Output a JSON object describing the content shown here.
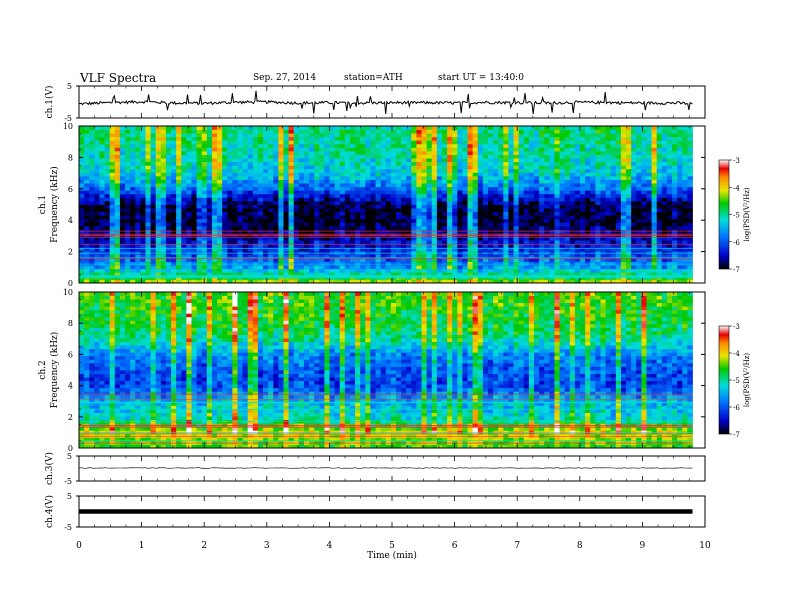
{
  "header": {
    "title": "VLF Spectra",
    "date": "Sep. 27, 2014",
    "station": "station=ATH",
    "start": "start UT =  13:40:0"
  },
  "chart_data": [
    {
      "type": "line",
      "name": "ch1-waveform",
      "ylabel": "ch.1(V)",
      "ylim": [
        -5,
        5
      ],
      "yticks": [
        5,
        -5
      ],
      "xlim": [
        0,
        10
      ],
      "x": [
        0,
        0.5,
        1,
        1.5,
        2,
        2.5,
        3,
        3.5,
        4,
        4.5,
        5,
        5.5,
        6,
        6.5,
        7,
        7.5,
        8,
        8.5,
        9,
        9.5,
        9.8
      ],
      "y": [
        -0.6,
        -0.2,
        0.1,
        -0.3,
        -0.4,
        -0.1,
        0.0,
        -0.3,
        -0.2,
        -0.3,
        -0.2,
        -0.2,
        -0.3,
        -0.1,
        -0.2,
        -0.3,
        -0.1,
        -0.2,
        -0.3,
        -0.3,
        -0.5
      ]
    },
    {
      "type": "heatmap",
      "name": "ch1-spectrogram",
      "ylabel": "ch.1 Frequency (kHz)",
      "ylim": [
        0,
        10
      ],
      "yticks": [
        0,
        2,
        4,
        6,
        8,
        10
      ],
      "xlim": [
        0,
        10
      ],
      "data_xmax": 9.8,
      "colorbar": {
        "label": "log(PSD(V²/Hz)",
        "range": [
          -7,
          -3
        ],
        "ticks": [
          -3,
          -4,
          -5,
          -6,
          -7
        ]
      },
      "mean_log_psd_by_freq": {
        "freq_khz": [
          0,
          1,
          2,
          3,
          4,
          5,
          6,
          7,
          8,
          9,
          10
        ],
        "value": [
          -4.2,
          -5.6,
          -6.2,
          -6.6,
          -6.9,
          -6.8,
          -5.9,
          -5.3,
          -5.1,
          -5.0,
          -4.9
        ]
      }
    },
    {
      "type": "heatmap",
      "name": "ch2-spectrogram",
      "ylabel": "ch.2 Frequency (kHz)",
      "ylim": [
        0,
        10
      ],
      "yticks": [
        0,
        2,
        4,
        6,
        8,
        10
      ],
      "xlim": [
        0,
        10
      ],
      "data_xmax": 9.8,
      "colorbar": {
        "label": "log(PSD(V²/Hz)",
        "range": [
          -7,
          -3
        ],
        "ticks": [
          -3,
          -4,
          -5,
          -6,
          -7
        ]
      },
      "mean_log_psd_by_freq": {
        "freq_khz": [
          0,
          1,
          2,
          3,
          4,
          5,
          6,
          7,
          8,
          9,
          10
        ],
        "value": [
          -4.6,
          -4.1,
          -5.2,
          -5.4,
          -6.1,
          -6.0,
          -5.7,
          -5.0,
          -4.7,
          -4.6,
          -4.5
        ]
      }
    },
    {
      "type": "line",
      "name": "ch3-waveform",
      "ylabel": "ch.3(V)",
      "ylim": [
        -5,
        5
      ],
      "yticks": [
        5,
        -5
      ],
      "xlim": [
        0,
        10
      ],
      "x": [
        0,
        9.8
      ],
      "y": [
        0.2,
        0.2
      ]
    },
    {
      "type": "line",
      "name": "ch4-waveform",
      "ylabel": "ch.4(V)",
      "ylim": [
        -5,
        5
      ],
      "yticks": [
        5,
        -5
      ],
      "xlim": [
        0,
        10
      ],
      "x": [
        0,
        9.8
      ],
      "y": [
        0,
        0
      ]
    }
  ],
  "x_axis": {
    "label": "Time (min)",
    "ticks": [
      0,
      1,
      2,
      3,
      4,
      5,
      6,
      7,
      8,
      9,
      10
    ]
  }
}
